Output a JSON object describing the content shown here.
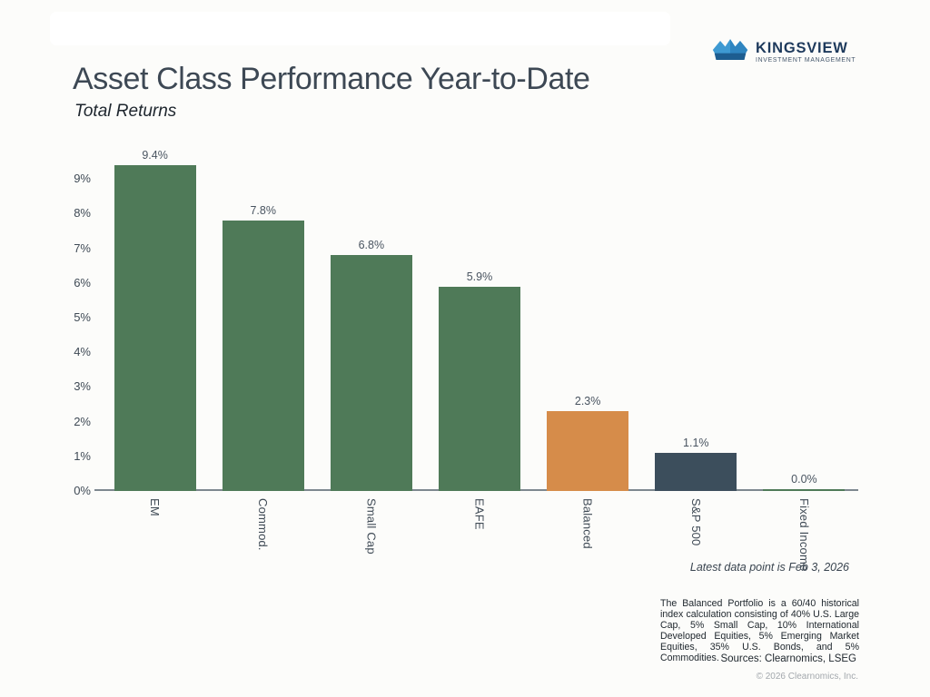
{
  "brand": {
    "name": "KINGSVIEW",
    "tagline": "INVESTMENT MANAGEMENT",
    "crown_light_blue": "#3e9ad2",
    "crown_mid_blue": "#2f85c0",
    "crown_dark_blue": "#1d5d90",
    "wordmark_navy": "#1e3a5c"
  },
  "header": {
    "title": "Asset Class Performance Year-to-Date",
    "subtitle": "Total Returns"
  },
  "chart_data": {
    "type": "bar",
    "title": "Asset Class Performance Year-to-Date",
    "subtitle": "Total Returns",
    "categories": [
      "EM",
      "Commod.",
      "Small Cap",
      "EAFE",
      "Balanced",
      "S&P 500",
      "Fixed Income"
    ],
    "values": [
      9.4,
      7.8,
      6.8,
      5.9,
      2.3,
      1.1,
      0.0
    ],
    "labels": [
      "9.4%",
      "7.8%",
      "6.8%",
      "5.9%",
      "2.3%",
      "1.1%",
      "0.0%"
    ],
    "bar_colors": [
      "#4f7a58",
      "#4f7a58",
      "#4f7a58",
      "#4f7a58",
      "#d68c4a",
      "#3c4e5c",
      "#4f7a58"
    ],
    "yticks": [
      "0%",
      "1%",
      "2%",
      "3%",
      "4%",
      "5%",
      "6%",
      "7%",
      "8%",
      "9%"
    ],
    "ylim": [
      0,
      9.97
    ],
    "xlabel": "",
    "ylabel": "",
    "grid": false,
    "legend": "none",
    "xlabel_rotation": "vertical",
    "axis_color": "#7e888f"
  },
  "footnotes": {
    "latest": "Latest data point is Feb 3, 2026",
    "disclaimer": "The Balanced Portfolio is a 60/40 historical index calculation consisting of 40% U.S. Large Cap, 5% Small Cap, 10% International Developed Equities, 5% Emerging Market Equities, 35% U.S. Bonds, and 5% Commodities.",
    "sources": "Sources: Clearnomics, LSEG",
    "copyright": "© 2026 Clearnomics, Inc."
  }
}
